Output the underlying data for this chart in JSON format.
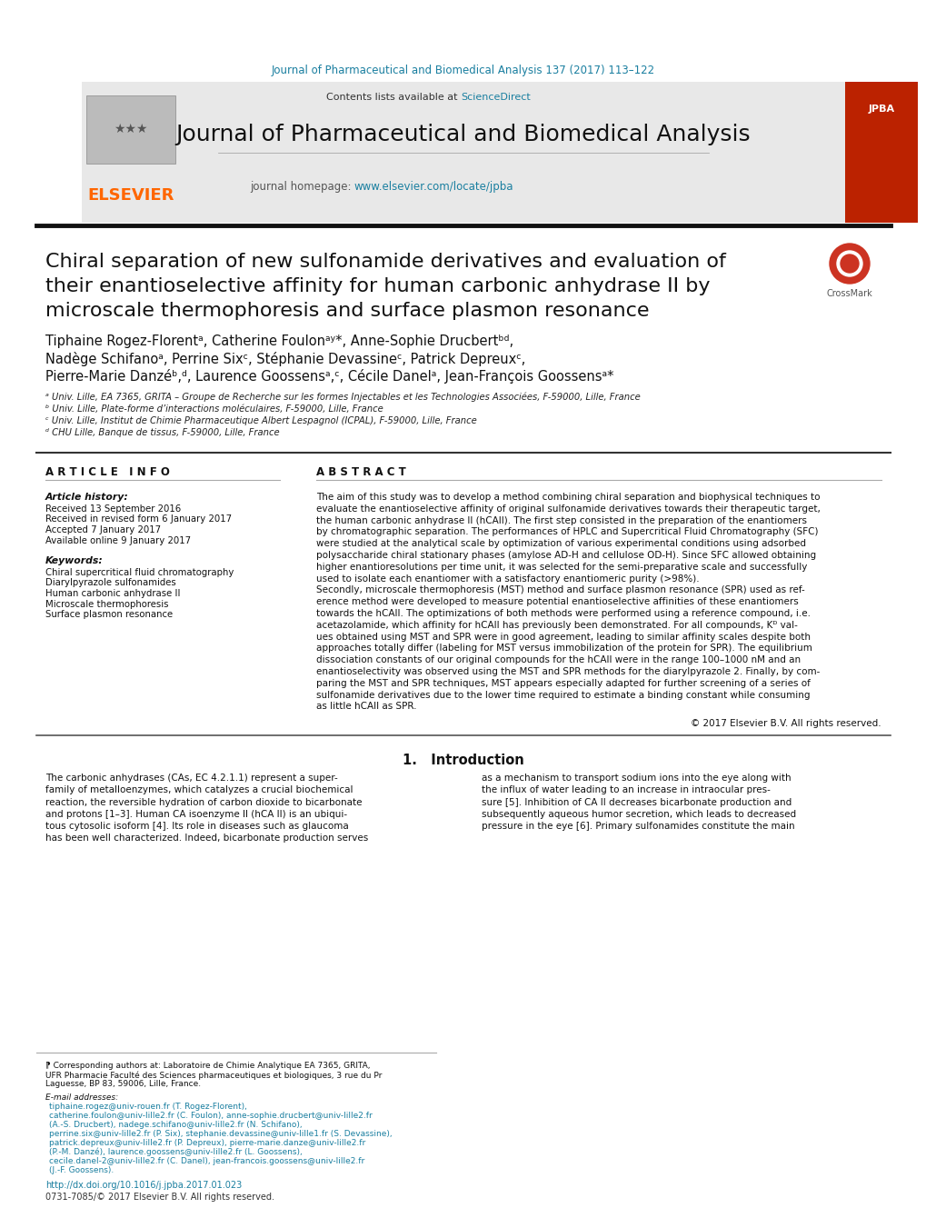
{
  "bg_color": "#ffffff",
  "header_citation": "Journal of Pharmaceutical and Biomedical Analysis 137 (2017) 113–122",
  "header_citation_color": "#1a7fa0",
  "journal_banner_bg": "#e8e8e8",
  "journal_name": "Journal of Pharmaceutical and Biomedical Analysis",
  "journal_homepage_label": "journal homepage:",
  "journal_homepage_url": "www.elsevier.com/locate/jpba",
  "contents_label": "Contents lists available at",
  "sciencedirect_label": "ScienceDirect",
  "elsevier_color": "#ff6600",
  "link_color": "#1a7fa0",
  "article_title_line1": "Chiral separation of new sulfonamide derivatives and evaluation of",
  "article_title_line2": "their enantioselective affinity for human carbonic anhydrase II by",
  "article_title_line3": "microscale thermophoresis and surface plasmon resonance",
  "author_line1": "Tiphaine Rogez-Florentᵃ, Catherine Foulonᵃʸ*, Anne-Sophie Drucbertᵇᵈ,",
  "author_line2": "Nadège Schifanoᵃ, Perrine Sixᶜ, Stéphanie Devassineᶜ, Patrick Depreuxᶜ,",
  "author_line3": "Pierre-Marie Danzéᵇ,ᵈ, Laurence Goossensᵃ,ᶜ, Cécile Danelᵃ, Jean-François Goossensᵃ*",
  "affiliation_a": "ᵃ Univ. Lille, EA 7365, GRITA – Groupe de Recherche sur les formes Injectables et les Technologies Associées, F-59000, Lille, France",
  "affiliation_b": "ᵇ Univ. Lille, Plate-forme d’interactions moléculaires, F-59000, Lille, France",
  "affiliation_c": "ᶜ Univ. Lille, Institut de Chimie Pharmaceutique Albert Lespagnol (ICPAL), F-59000, Lille, France",
  "affiliation_d": "ᵈ CHU Lille, Banque de tissus, F-59000, Lille, France",
  "article_info_header": "A R T I C L E   I N F O",
  "abstract_header": "A B S T R A C T",
  "article_history_label": "Article history:",
  "received_label": "Received 13 September 2016",
  "received_revised_label": "Received in revised form 6 January 2017",
  "accepted_label": "Accepted 7 January 2017",
  "available_label": "Available online 9 January 2017",
  "keywords_label": "Keywords:",
  "keyword1": "Chiral supercritical fluid chromatography",
  "keyword2": "Diarylpyrazole sulfonamides",
  "keyword3": "Human carbonic anhydrase II",
  "keyword4": "Microscale thermophoresis",
  "keyword5": "Surface plasmon resonance",
  "abstract_lines": [
    "The aim of this study was to develop a method combining chiral separation and biophysical techniques to",
    "evaluate the enantioselective affinity of original sulfonamide derivatives towards their therapeutic target,",
    "the human carbonic anhydrase II (hCAII). The first step consisted in the preparation of the enantiomers",
    "by chromatographic separation. The performances of HPLC and Supercritical Fluid Chromatography (SFC)",
    "were studied at the analytical scale by optimization of various experimental conditions using adsorbed",
    "polysaccharide chiral stationary phases (amylose AD-H and cellulose OD-H). Since SFC allowed obtaining",
    "higher enantioresolutions per time unit, it was selected for the semi-preparative scale and successfully",
    "used to isolate each enantiomer with a satisfactory enantiomeric purity (>98%).",
    "Secondly, microscale thermophoresis (MST) method and surface plasmon resonance (SPR) used as ref-",
    "erence method were developed to measure potential enantioselective affinities of these enantiomers",
    "towards the hCAII. The optimizations of both methods were performed using a reference compound, i.e.",
    "acetazolamide, which affinity for hCAII has previously been demonstrated. For all compounds, Kᴰ val-",
    "ues obtained using MST and SPR were in good agreement, leading to similar affinity scales despite both",
    "approaches totally differ (labeling for MST versus immobilization of the protein for SPR). The equilibrium",
    "dissociation constants of our original compounds for the hCAII were in the range 100–1000 nM and an",
    "enantioselectivity was observed using the MST and SPR methods for the diarylpyrazole 2. Finally, by com-",
    "paring the MST and SPR techniques, MST appears especially adapted for further screening of a series of",
    "sulfonamide derivatives due to the lower time required to estimate a binding constant while consuming",
    "as little hCAII as SPR."
  ],
  "copyright_text": "© 2017 Elsevier B.V. All rights reserved.",
  "intro_header": "1.   Introduction",
  "intro_lines": [
    "The carbonic anhydrases (CAs, EC 4.2.1.1) represent a super-",
    "family of metalloenzymes, which catalyzes a crucial biochemical",
    "reaction, the reversible hydration of carbon dioxide to bicarbonate",
    "and protons [1–3]. Human CA isoenzyme II (hCA II) is an ubiqui-",
    "tous cytosolic isoform [4]. Its role in diseases such as glaucoma",
    "has been well characterized. Indeed, bicarbonate production serves",
    "as a mechanism to transport sodium ions into the eye along with",
    "the influx of water leading to an increase in intraocular pres-",
    "sure [5]. Inhibition of CA II decreases bicarbonate production and",
    "subsequently aqueous humor secretion, which leads to decreased",
    "pressure in the eye [6]. Primary sulfonamides constitute the main"
  ],
  "footnote_corr_lines": [
    "⁋ Corresponding authors at: Laboratoire de Chimie Analytique EA 7365, GRITA,",
    "UFR Pharmacie Faculté des Sciences pharmaceutiques et biologiques, 3 rue du Pr",
    "Laguesse, BP 83, 59006, Lille, France."
  ],
  "footnote_email_label": "E-mail addresses:",
  "footnote_email_lines": [
    "tiphaine.rogez@univ-rouen.fr (T. Rogez-Florent),",
    "catherine.foulon@univ-lille2.fr (C. Foulon), anne-sophie.drucbert@univ-lille2.fr",
    "(A.-S. Drucbert), nadege.schifano@univ-lille2.fr (N. Schifano),",
    "perrine.six@univ-lille2.fr (P. Six), stephanie.devassine@univ-lille1.fr (S. Devassine),",
    "patrick.depreux@univ-lille2.fr (P. Depreux), pierre-marie.danze@univ-lille2.fr",
    "(P.-M. Danzé), laurence.goossens@univ-lille2.fr (L. Goossens),",
    "cecile.danel-2@univ-lille2.fr (C. Danel), jean-francois.goossens@univ-lille2.fr",
    "(J.-F. Goossens)."
  ],
  "doi_text": "http://dx.doi.org/10.1016/j.jpba.2017.01.023",
  "issn_text": "0731-7085/© 2017 Elsevier B.V. All rights reserved."
}
